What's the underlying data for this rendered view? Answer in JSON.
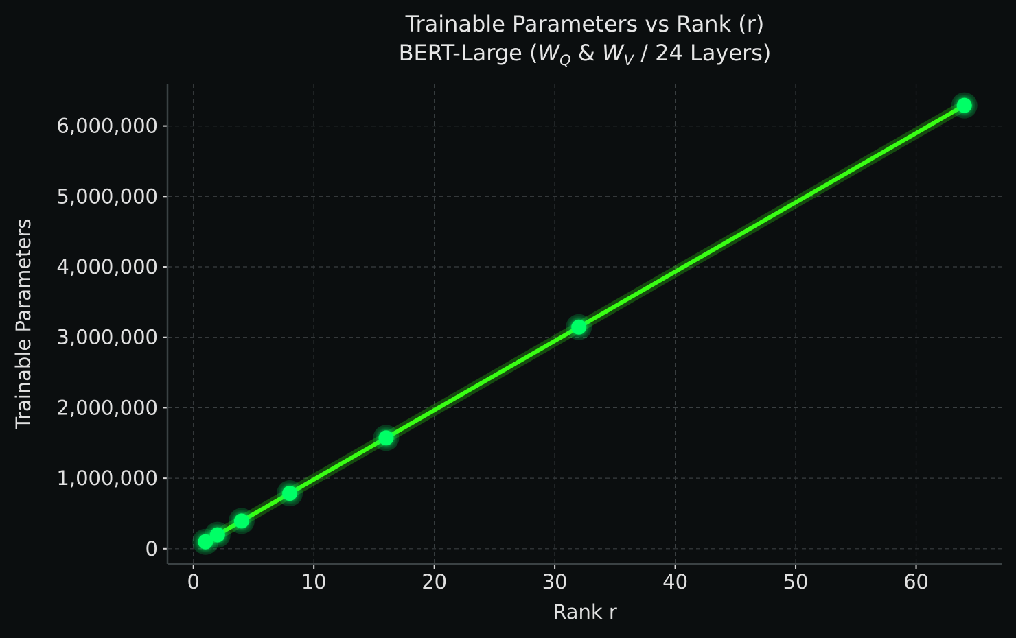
{
  "chart_data": {
    "type": "line",
    "title_line1": "Trainable Parameters vs Rank (r)",
    "title_line2": {
      "prefix": "BERT-Large (",
      "w1": "W",
      "sub1": "Q",
      "mid": " & ",
      "w2": "W",
      "sub2": "V",
      "suffix": " / 24 Layers)"
    },
    "xlabel": "Rank r",
    "ylabel": "Trainable Parameters",
    "x": [
      1,
      2,
      4,
      8,
      16,
      32,
      64
    ],
    "y": [
      98304,
      196608,
      393216,
      786432,
      1572864,
      3145728,
      6291456
    ],
    "xlim": [
      -2.15,
      67.15
    ],
    "ylim": [
      -216000,
      6600000
    ],
    "xticks": [
      0,
      10,
      20,
      30,
      40,
      50,
      60
    ],
    "xtick_labels": [
      "0",
      "10",
      "20",
      "30",
      "40",
      "50",
      "60"
    ],
    "yticks": [
      0,
      1000000,
      2000000,
      3000000,
      4000000,
      5000000,
      6000000
    ],
    "ytick_labels": [
      "0",
      "1,000,000",
      "2,000,000",
      "3,000,000",
      "4,000,000",
      "5,000,000",
      "6,000,000"
    ],
    "grid": true,
    "colors": {
      "background": "#0b0e0f",
      "line": "#39ff14",
      "marker": "#00ff66",
      "grid": "#3a3f41",
      "text": "#e0e0e0"
    }
  }
}
